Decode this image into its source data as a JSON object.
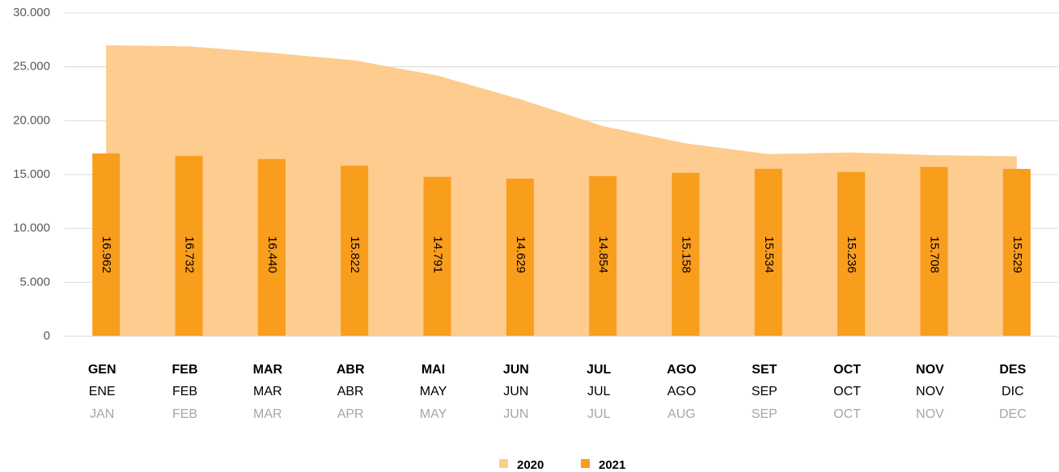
{
  "chart_data": {
    "type": "bar",
    "categories": [
      [
        "GEN",
        "ENE",
        "JAN"
      ],
      [
        "FEB",
        "FEB",
        "FEB"
      ],
      [
        "MAR",
        "MAR",
        "MAR"
      ],
      [
        "ABR",
        "ABR",
        "APR"
      ],
      [
        "MAI",
        "MAY",
        "MAY"
      ],
      [
        "JUN",
        "JUN",
        "JUN"
      ],
      [
        "JUL",
        "JUL",
        "JUL"
      ],
      [
        "AGO",
        "AGO",
        "AUG"
      ],
      [
        "SET",
        "SEP",
        "SEP"
      ],
      [
        "OCT",
        "OCT",
        "OCT"
      ],
      [
        "NOV",
        "NOV",
        "NOV"
      ],
      [
        "DES",
        "DIC",
        "DEC"
      ]
    ],
    "series": [
      {
        "name": "2020",
        "type": "area",
        "color": "#fdcc8e",
        "values": [
          27000,
          26900,
          26300,
          25600,
          24200,
          22000,
          19500,
          17900,
          16900,
          17050,
          16800,
          16700
        ]
      },
      {
        "name": "2021",
        "type": "bar",
        "color": "#f99d1c",
        "values": [
          16962,
          16732,
          16440,
          15822,
          14791,
          14629,
          14854,
          15158,
          15534,
          15236,
          15708,
          15529
        ],
        "value_labels": [
          "16.962",
          "16.732",
          "16.440",
          "15.822",
          "14.791",
          "14.629",
          "14.854",
          "15.158",
          "15.534",
          "15.236",
          "15.708",
          "15.529"
        ]
      }
    ],
    "ylim": [
      0,
      30000
    ],
    "yticks": [
      0,
      {
        "value": 5000,
        "label": "5.000"
      },
      {
        "value": 10000,
        "label": "10.000"
      },
      {
        "value": 15000,
        "label": "15.000"
      },
      {
        "value": 20000,
        "label": "20.000"
      },
      {
        "value": 25000,
        "label": "25.000"
      },
      {
        "value": 30000,
        "label": "30.000"
      }
    ],
    "grid": true,
    "legend": "bottom"
  }
}
